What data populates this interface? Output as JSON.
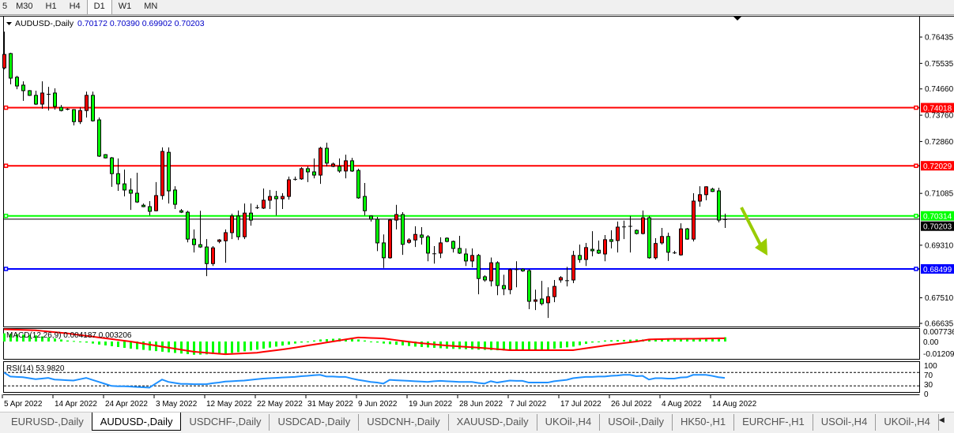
{
  "toolbar": {
    "timeframes": [
      "5",
      "M30",
      "H1",
      "H4",
      "D1",
      "W1",
      "MN"
    ],
    "active": "D1"
  },
  "chart_header": {
    "symbol": "AUDUSD-,Daily",
    "ohlc": "0.70172 0.70390 0.69902 0.70203"
  },
  "colors": {
    "bull": "#ff0000",
    "bear": "#00ff00",
    "wick": "#000000",
    "macd_hist": "#00ff00",
    "macd_signal": "#ff0000",
    "rsi": "#1e90ff",
    "arrow": "#99cc00"
  },
  "chart_data": {
    "type": "candlestick",
    "price_axis": {
      "range": [
        0.66635,
        0.76435
      ],
      "ticks": [
        "0.76435",
        "0.75535",
        "0.74660",
        "0.73760",
        "0.72860",
        "0.71085",
        "0.69310",
        "0.67510",
        "0.66635"
      ]
    },
    "date_labels": [
      "5 Apr 2022",
      "14 Apr 2022",
      "24 Apr 2022",
      "3 May 2022",
      "12 May 2022",
      "22 May 2022",
      "31 May 2022",
      "9 Jun 2022",
      "19 Jun 2022",
      "28 Jun 2022",
      "7 Jul 2022",
      "17 Jul 2022",
      "26 Jul 2022",
      "4 Aug 2022",
      "14 Aug 2022"
    ],
    "bid": {
      "value": 0.70203,
      "label": "0.70203",
      "color": "#000000"
    },
    "levels": [
      {
        "value": 0.74018,
        "label": "0.74018",
        "color": "#ff0000"
      },
      {
        "value": 0.72029,
        "label": "0.72029",
        "color": "#ff0000"
      },
      {
        "value": 0.70314,
        "label": "0.70314",
        "color": "#00ff00"
      },
      {
        "value": 0.68499,
        "label": "0.68499",
        "color": "#0000ff"
      }
    ],
    "candles": [
      [
        0.7538,
        0.7662,
        0.7533,
        0.7584
      ],
      [
        0.7587,
        0.759,
        0.7482,
        0.7503
      ],
      [
        0.7506,
        0.7511,
        0.7465,
        0.7476
      ],
      [
        0.7479,
        0.7492,
        0.7425,
        0.746
      ],
      [
        0.746,
        0.7462,
        0.7442,
        0.7444
      ],
      [
        0.7444,
        0.746,
        0.7411,
        0.7414
      ],
      [
        0.7414,
        0.7492,
        0.7398,
        0.7452
      ],
      [
        0.7449,
        0.7473,
        0.7392,
        0.7447
      ],
      [
        0.7452,
        0.7468,
        0.7395,
        0.7406
      ],
      [
        0.7403,
        0.7411,
        0.7389,
        0.7392
      ],
      [
        0.7398,
        0.74,
        0.7393,
        0.7395
      ],
      [
        0.7395,
        0.7397,
        0.7341,
        0.7354
      ],
      [
        0.7354,
        0.7403,
        0.7346,
        0.7392
      ],
      [
        0.7392,
        0.7457,
        0.7368,
        0.7444
      ],
      [
        0.7444,
        0.7457,
        0.7354,
        0.7357
      ],
      [
        0.736,
        0.7368,
        0.7233,
        0.7236
      ],
      [
        0.7241,
        0.7243,
        0.7228,
        0.723
      ],
      [
        0.723,
        0.7233,
        0.7131,
        0.7176
      ],
      [
        0.7176,
        0.7228,
        0.7117,
        0.7141
      ],
      [
        0.7141,
        0.719,
        0.7098,
        0.712
      ],
      [
        0.712,
        0.716,
        0.7052,
        0.7109
      ],
      [
        0.7109,
        0.7179,
        0.7076,
        0.7079
      ],
      [
        0.7068,
        0.7074,
        0.7061,
        0.7063
      ],
      [
        0.7063,
        0.7082,
        0.7033,
        0.7047
      ],
      [
        0.7049,
        0.7147,
        0.7047,
        0.7101
      ],
      [
        0.7101,
        0.7266,
        0.7087,
        0.7252
      ],
      [
        0.7249,
        0.7266,
        0.7074,
        0.7117
      ],
      [
        0.712,
        0.7133,
        0.7055,
        0.7071
      ],
      [
        0.7049,
        0.7055,
        0.7041,
        0.7044
      ],
      [
        0.7044,
        0.7049,
        0.6941,
        0.6952
      ],
      [
        0.6952,
        0.6985,
        0.6906,
        0.6933
      ],
      [
        0.6933,
        0.7049,
        0.6922,
        0.6925
      ],
      [
        0.6925,
        0.6952,
        0.6825,
        0.6868
      ],
      [
        0.6868,
        0.6928,
        0.686,
        0.6922
      ],
      [
        0.6944,
        0.6952,
        0.6938,
        0.6949
      ],
      [
        0.6946,
        0.6985,
        0.6871,
        0.6974
      ],
      [
        0.6974,
        0.7039,
        0.6952,
        0.7031
      ],
      [
        0.7031,
        0.705,
        0.6949,
        0.696
      ],
      [
        0.696,
        0.7074,
        0.6952,
        0.7041
      ],
      [
        0.7041,
        0.7074,
        0.6998,
        0.7017
      ],
      [
        0.7061,
        0.7069,
        0.7055,
        0.7058
      ],
      [
        0.7058,
        0.7125,
        0.7055,
        0.7085
      ],
      [
        0.7085,
        0.712,
        0.7055,
        0.7098
      ],
      [
        0.7098,
        0.7117,
        0.7033,
        0.709
      ],
      [
        0.709,
        0.7109,
        0.7055,
        0.7098
      ],
      [
        0.7098,
        0.7166,
        0.7087,
        0.7155
      ],
      [
        0.7155,
        0.7166,
        0.7152,
        0.7158
      ],
      [
        0.7158,
        0.7198,
        0.7155,
        0.7193
      ],
      [
        0.7193,
        0.7201,
        0.7147,
        0.7182
      ],
      [
        0.7182,
        0.7228,
        0.716,
        0.7171
      ],
      [
        0.7171,
        0.7268,
        0.7141,
        0.7263
      ],
      [
        0.7263,
        0.7282,
        0.7201,
        0.7212
      ],
      [
        0.7201,
        0.7214,
        0.7198,
        0.7209
      ],
      [
        0.7201,
        0.7228,
        0.7179,
        0.7185
      ],
      [
        0.7185,
        0.7241,
        0.716,
        0.722
      ],
      [
        0.722,
        0.723,
        0.7182,
        0.7185
      ],
      [
        0.7187,
        0.7193,
        0.709,
        0.7093
      ],
      [
        0.7098,
        0.7144,
        0.7033,
        0.7049
      ],
      [
        0.7031,
        0.7033,
        0.7012,
        0.702
      ],
      [
        0.702,
        0.7028,
        0.6911,
        0.6939
      ],
      [
        0.6939,
        0.6968,
        0.6853,
        0.6888
      ],
      [
        0.6888,
        0.7022,
        0.6885,
        0.7017
      ],
      [
        0.7017,
        0.7069,
        0.6985,
        0.7036
      ],
      [
        0.7036,
        0.7044,
        0.6898,
        0.6934
      ],
      [
        0.6941,
        0.6955,
        0.6936,
        0.6949
      ],
      [
        0.6949,
        0.6996,
        0.6925,
        0.6968
      ],
      [
        0.6966,
        0.6993,
        0.6933,
        0.6958
      ],
      [
        0.696,
        0.6966,
        0.6876,
        0.6904
      ],
      [
        0.6903,
        0.6928,
        0.6868,
        0.6901
      ],
      [
        0.6904,
        0.6958,
        0.6887,
        0.6939
      ],
      [
        0.6955,
        0.6958,
        0.6941,
        0.6944
      ],
      [
        0.6944,
        0.6947,
        0.6906,
        0.692
      ],
      [
        0.692,
        0.6963,
        0.6901,
        0.6904
      ],
      [
        0.6901,
        0.692,
        0.686,
        0.6877
      ],
      [
        0.6877,
        0.692,
        0.6855,
        0.6896
      ],
      [
        0.6896,
        0.6901,
        0.6763,
        0.6817
      ],
      [
        0.6823,
        0.6828,
        0.6806,
        0.6812
      ],
      [
        0.6809,
        0.6889,
        0.679,
        0.6871
      ],
      [
        0.6871,
        0.6876,
        0.676,
        0.6793
      ],
      [
        0.6793,
        0.683,
        0.676,
        0.6782
      ],
      [
        0.6779,
        0.6852,
        0.6763,
        0.6847
      ],
      [
        0.6847,
        0.6876,
        0.6787,
        0.6849
      ],
      [
        0.6849,
        0.6852,
        0.684,
        0.6843
      ],
      [
        0.6844,
        0.6849,
        0.6712,
        0.6739
      ],
      [
        0.6739,
        0.6779,
        0.6709,
        0.6744
      ],
      [
        0.6747,
        0.6809,
        0.6725,
        0.6731
      ],
      [
        0.6734,
        0.6787,
        0.6682,
        0.6755
      ],
      [
        0.6755,
        0.6812,
        0.6736,
        0.679
      ],
      [
        0.6812,
        0.6825,
        0.6803,
        0.682
      ],
      [
        0.6809,
        0.6857,
        0.679,
        0.6811
      ],
      [
        0.6812,
        0.6912,
        0.6801,
        0.6896
      ],
      [
        0.6896,
        0.6933,
        0.6871,
        0.6882
      ],
      [
        0.6882,
        0.6939,
        0.686,
        0.6923
      ],
      [
        0.6917,
        0.6979,
        0.6893,
        0.6912
      ],
      [
        0.6914,
        0.6947,
        0.6901,
        0.6904
      ],
      [
        0.6901,
        0.6966,
        0.6876,
        0.695
      ],
      [
        0.695,
        0.6982,
        0.692,
        0.6944
      ],
      [
        0.6947,
        0.7012,
        0.6906,
        0.6993
      ],
      [
        0.6993,
        0.7015,
        0.6952,
        0.6995
      ],
      [
        0.6995,
        0.7031,
        0.6906,
        0.6997
      ],
      [
        0.6982,
        0.6985,
        0.6968,
        0.6971
      ],
      [
        0.6971,
        0.705,
        0.6968,
        0.7025
      ],
      [
        0.7025,
        0.7031,
        0.6885,
        0.6888
      ],
      [
        0.6888,
        0.6955,
        0.6882,
        0.6937
      ],
      [
        0.6939,
        0.699,
        0.6933,
        0.6961
      ],
      [
        0.6961,
        0.6974,
        0.6877,
        0.6907
      ],
      [
        0.6904,
        0.6912,
        0.6901,
        0.6906
      ],
      [
        0.6898,
        0.7006,
        0.6895,
        0.6987
      ],
      [
        0.6987,
        0.699,
        0.695,
        0.6952
      ],
      [
        0.6952,
        0.7109,
        0.6944,
        0.7082
      ],
      [
        0.7082,
        0.7133,
        0.7063,
        0.7104
      ],
      [
        0.7104,
        0.7133,
        0.7085,
        0.7131
      ],
      [
        0.7123,
        0.7128,
        0.7113,
        0.7115
      ],
      [
        0.7117,
        0.7128,
        0.7009,
        0.7017
      ],
      [
        0.70172,
        0.7039,
        0.69902,
        0.70203
      ]
    ],
    "macd": {
      "label": "MACD(12,26,9) 0.004187 0.003206",
      "axis_labels": [
        "0.007736",
        "0.00",
        "-0.01209"
      ],
      "main": [
        0.008,
        0.0076,
        0.0072,
        0.0068,
        0.0064,
        0.006,
        0.005,
        0.004,
        0.003,
        0.002,
        0.001,
        0.0005,
        0,
        -0.001,
        -0.002,
        -0.003,
        -0.0038,
        -0.0046,
        -0.0054,
        -0.0062,
        -0.007,
        -0.0076,
        -0.0082,
        -0.0088,
        -0.0094,
        -0.01,
        -0.0106,
        -0.0112,
        -0.0118,
        -0.0124,
        -0.013,
        -0.0128,
        -0.0126,
        -0.0124,
        -0.0122,
        -0.012,
        -0.0112,
        -0.0104,
        -0.0096,
        -0.0088,
        -0.008,
        -0.007,
        -0.006,
        -0.005,
        -0.004,
        -0.003,
        -0.002,
        -0.001,
        0,
        0.001,
        0.002,
        0.0023,
        0.0027,
        0.003,
        0.0027,
        0.0023,
        0.002,
        0.001,
        0,
        -0.001,
        -0.002,
        -0.0026,
        -0.0032,
        -0.0038,
        -0.0044,
        -0.005,
        -0.0054,
        -0.0058,
        -0.0062,
        -0.0066,
        -0.007,
        -0.0072,
        -0.0074,
        -0.0076,
        -0.0078,
        -0.008,
        -0.0082,
        -0.0084,
        -0.0086,
        -0.0088,
        -0.009,
        -0.0089,
        -0.0088,
        -0.0087,
        -0.0086,
        -0.0085,
        -0.0078,
        -0.0071,
        -0.0064,
        -0.0057,
        -0.005,
        -0.0037,
        -0.0023,
        -0.001,
        0,
        0.001,
        0.0012,
        0.0014,
        0.0016,
        0.0018,
        0.002,
        0.002,
        0.002,
        0.002,
        0.002,
        0.002,
        0.0022,
        0.0024,
        0.0026,
        0.0028,
        0.003,
        0.0033,
        0.0036,
        0.0039,
        0.004187
      ],
      "signal": [
        0.012,
        0.0118,
        0.0116,
        0.0114,
        0.0112,
        0.011,
        0.0104,
        0.0098,
        0.0092,
        0.0086,
        0.008,
        0.0072,
        0.0064,
        0.0056,
        0.0048,
        0.004,
        0.0032,
        0.0024,
        0.0016,
        0.0008,
        0,
        -0.001,
        -0.002,
        -0.003,
        -0.004,
        -0.005,
        -0.006,
        -0.007,
        -0.008,
        -0.009,
        -0.01,
        -0.0105,
        -0.011,
        -0.0115,
        -0.012,
        -0.0125,
        -0.0122,
        -0.0119,
        -0.0116,
        -0.0113,
        -0.011,
        -0.0102,
        -0.0094,
        -0.0086,
        -0.0078,
        -0.007,
        -0.006,
        -0.005,
        -0.004,
        -0.003,
        -0.002,
        -0.001,
        0,
        0.001,
        0.002,
        0.003,
        0.004,
        0.0038,
        0.0035,
        0.0033,
        0.003,
        0.0022,
        0.0014,
        0.0006,
        -0.0002,
        -0.001,
        -0.0016,
        -0.0022,
        -0.0028,
        -0.0034,
        -0.004,
        -0.0044,
        -0.0048,
        -0.0052,
        -0.0056,
        -0.006,
        -0.0065,
        -0.007,
        -0.0075,
        -0.008,
        -0.0085,
        -0.0085,
        -0.0085,
        -0.0085,
        -0.0085,
        -0.0085,
        -0.0085,
        -0.0085,
        -0.0085,
        -0.0085,
        -0.0085,
        -0.0076,
        -0.0067,
        -0.0058,
        -0.0049,
        -0.004,
        -0.0032,
        -0.0024,
        -0.0016,
        -0.0008,
        0,
        0.001,
        0.002,
        0.0022,
        0.0023,
        0.0025,
        0.0026,
        0.0026,
        0.0027,
        0.0027,
        0.0028,
        0.0029,
        0.003,
        0.0031,
        0.003206
      ]
    },
    "rsi": {
      "label": "RSI(14) 53.9820",
      "axis_labels": [
        "100",
        "70",
        "30",
        "0"
      ],
      "levels": [
        70,
        30
      ],
      "values": [
        70,
        58,
        57,
        56,
        53,
        50,
        52,
        54,
        49,
        48,
        47,
        46,
        50,
        54,
        48,
        42,
        36,
        30,
        29,
        29,
        28,
        27,
        26,
        25,
        37,
        49,
        42,
        39,
        36,
        36,
        35,
        35,
        35,
        38,
        40,
        43,
        44,
        45,
        46,
        48,
        50,
        52,
        53,
        54,
        55,
        56,
        57,
        59,
        60,
        62,
        63,
        58,
        58,
        57,
        57,
        52,
        48,
        45,
        42,
        40,
        37,
        48,
        47,
        46,
        45,
        44,
        43,
        42,
        44,
        45,
        44,
        43,
        42,
        42,
        42,
        39,
        37,
        44,
        40,
        43,
        46,
        45,
        45,
        40,
        40,
        40,
        40,
        44,
        46,
        48,
        53,
        55,
        57,
        57,
        58,
        58,
        60,
        61,
        63,
        63,
        59,
        60,
        49,
        53,
        53,
        52,
        52,
        55,
        56,
        63,
        63,
        63,
        60,
        56,
        53.982
      ]
    }
  },
  "tabs": [
    "EURUSD-,Daily",
    "AUDUSD-,Daily",
    "USDCHF-,Daily",
    "USDCAD-,Daily",
    "USDCNH-,Daily",
    "XAUUSD-,Daily",
    "UKOil-,H4",
    "USOil-,Daily",
    "HK50-,H1",
    "EURCHF-,H1",
    "USOil-,H4",
    "UKOil-,H4"
  ],
  "active_tab": "AUDUSD-,Daily",
  "scroll": {
    "left": "◀",
    "right": "▶"
  }
}
